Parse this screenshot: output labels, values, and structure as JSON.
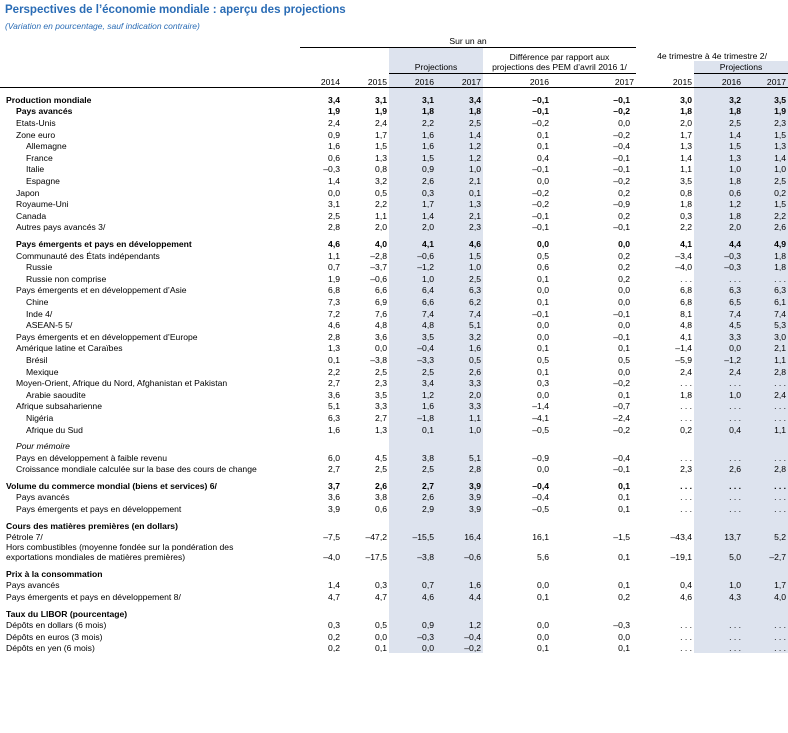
{
  "header": {
    "title": "Perspectives de l’économie mondiale : aperçu des projections",
    "subtitle": "(Variation en pourcentage, sauf indication contraire)",
    "annual": "Sur un an",
    "projections": "Projections",
    "difference": "Différence par rapport aux projections des PEM d’avril 2016 1/",
    "quarterly": "4e trimestre à 4e trimestre 2/",
    "quarterly_projections": "Projections",
    "years": [
      "2014",
      "2015",
      "2016",
      "2017",
      "2016",
      "2017",
      "2015",
      "2016",
      "2017"
    ]
  },
  "table": {
    "sections": [
      {
        "rows": [
          {
            "label": "Production mondiale",
            "level": 0,
            "style": "bold",
            "values": [
              "3,4",
              "3,1",
              "3,1",
              "3,4",
              "–0,1",
              "–0,1",
              "3,0",
              "3,2",
              "3,5"
            ]
          },
          {
            "label": "Pays avancés",
            "level": 1,
            "style": "bold",
            "values": [
              "1,9",
              "1,9",
              "1,8",
              "1,8",
              "–0,1",
              "–0,2",
              "1,8",
              "1,8",
              "1,9"
            ]
          },
          {
            "label": "Etats-Unis",
            "level": 1,
            "values": [
              "2,4",
              "2,4",
              "2,2",
              "2,5",
              "–0,2",
              "0,0",
              "2,0",
              "2,5",
              "2,3"
            ]
          },
          {
            "label": "Zone euro",
            "level": 1,
            "values": [
              "0,9",
              "1,7",
              "1,6",
              "1,4",
              "0,1",
              "–0,2",
              "1,7",
              "1,4",
              "1,5"
            ]
          },
          {
            "label": "Allemagne",
            "level": 2,
            "values": [
              "1,6",
              "1,5",
              "1,6",
              "1,2",
              "0,1",
              "–0,4",
              "1,3",
              "1,5",
              "1,3"
            ]
          },
          {
            "label": "France",
            "level": 2,
            "values": [
              "0,6",
              "1,3",
              "1,5",
              "1,2",
              "0,4",
              "–0,1",
              "1,4",
              "1,3",
              "1,4"
            ]
          },
          {
            "label": "Italie",
            "level": 2,
            "values": [
              "–0,3",
              "0,8",
              "0,9",
              "1,0",
              "–0,1",
              "–0,1",
              "1,1",
              "1,0",
              "1,0"
            ]
          },
          {
            "label": "Espagne",
            "level": 2,
            "values": [
              "1,4",
              "3,2",
              "2,6",
              "2,1",
              "0,0",
              "–0,2",
              "3,5",
              "1,8",
              "2,5"
            ]
          },
          {
            "label": "Japon",
            "level": 1,
            "values": [
              "0,0",
              "0,5",
              "0,3",
              "0,1",
              "–0,2",
              "0,2",
              "0,8",
              "0,6",
              "0,2"
            ]
          },
          {
            "label": "Royaume-Uni",
            "level": 1,
            "values": [
              "3,1",
              "2,2",
              "1,7",
              "1,3",
              "–0,2",
              "–0,9",
              "1,8",
              "1,2",
              "1,5"
            ]
          },
          {
            "label": "Canada",
            "level": 1,
            "values": [
              "2,5",
              "1,1",
              "1,4",
              "2,1",
              "–0,1",
              "0,2",
              "0,3",
              "1,8",
              "2,2"
            ]
          },
          {
            "label": "Autres pays avancés 3/",
            "level": 1,
            "values": [
              "2,8",
              "2,0",
              "2,0",
              "2,3",
              "–0,1",
              "–0,1",
              "2,2",
              "2,0",
              "2,6"
            ]
          }
        ]
      },
      {
        "rows": [
          {
            "label": "Pays émergents et pays en développement",
            "level": 1,
            "style": "bold",
            "values": [
              "4,6",
              "4,0",
              "4,1",
              "4,6",
              "0,0",
              "0,0",
              "4,1",
              "4,4",
              "4,9"
            ]
          },
          {
            "label": "Communauté des États indépendants",
            "level": 1,
            "values": [
              "1,1",
              "–2,8",
              "–0,6",
              "1,5",
              "0,5",
              "0,2",
              "–3,4",
              "–0,3",
              "1,8"
            ]
          },
          {
            "label": "Russie",
            "level": 2,
            "values": [
              "0,7",
              "–3,7",
              "–1,2",
              "1,0",
              "0,6",
              "0,2",
              "–4,0",
              "–0,3",
              "1,8"
            ]
          },
          {
            "label": "Russie non comprise",
            "level": 2,
            "values": [
              "1,9",
              "–0,6",
              "1,0",
              "2,5",
              "0,1",
              "0,2",
              ". . .",
              ". . .",
              ". . ."
            ]
          },
          {
            "label": "Pays émergents et en développement d’Asie",
            "level": 1,
            "values": [
              "6,8",
              "6,6",
              "6,4",
              "6,3",
              "0,0",
              "0,0",
              "6,8",
              "6,3",
              "6,3"
            ]
          },
          {
            "label": "Chine",
            "level": 2,
            "values": [
              "7,3",
              "6,9",
              "6,6",
              "6,2",
              "0,1",
              "0,0",
              "6,8",
              "6,5",
              "6,1"
            ]
          },
          {
            "label": "Inde 4/",
            "level": 2,
            "values": [
              "7,2",
              "7,6",
              "7,4",
              "7,4",
              "–0,1",
              "–0,1",
              "8,1",
              "7,4",
              "7,4"
            ]
          },
          {
            "label": "ASEAN-5 5/",
            "level": 2,
            "values": [
              "4,6",
              "4,8",
              "4,8",
              "5,1",
              "0,0",
              "0,0",
              "4,8",
              "4,5",
              "5,3"
            ]
          },
          {
            "label": "Pays émergents et en développement d’Europe",
            "level": 1,
            "values": [
              "2,8",
              "3,6",
              "3,5",
              "3,2",
              "0,0",
              "–0,1",
              "4,1",
              "3,3",
              "3,0"
            ]
          },
          {
            "label": "Amérique latine et Caraïbes",
            "level": 1,
            "values": [
              "1,3",
              "0,0",
              "–0,4",
              "1,6",
              "0,1",
              "0,1",
              "–1,4",
              "0,0",
              "2,1"
            ]
          },
          {
            "label": "Brésil",
            "level": 2,
            "values": [
              "0,1",
              "–3,8",
              "–3,3",
              "0,5",
              "0,5",
              "0,5",
              "–5,9",
              "–1,2",
              "1,1"
            ]
          },
          {
            "label": "Mexique",
            "level": 2,
            "values": [
              "2,2",
              "2,5",
              "2,5",
              "2,6",
              "0,1",
              "0,0",
              "2,4",
              "2,4",
              "2,8"
            ]
          },
          {
            "label": "Moyen-Orient, Afrique du Nord, Afghanistan et Pakistan",
            "level": 1,
            "values": [
              "2,7",
              "2,3",
              "3,4",
              "3,3",
              "0,3",
              "–0,2",
              ". . .",
              ". . .",
              ". . ."
            ]
          },
          {
            "label": "Arabie saoudite",
            "level": 2,
            "values": [
              "3,6",
              "3,5",
              "1,2",
              "2,0",
              "0,0",
              "0,1",
              "1,8",
              "1,0",
              "2,4"
            ]
          },
          {
            "label": "Afrique subsaharienne",
            "level": 1,
            "values": [
              "5,1",
              "3,3",
              "1,6",
              "3,3",
              "–1,4",
              "–0,7",
              ". . .",
              ". . .",
              ". . ."
            ]
          },
          {
            "label": "Nigéria",
            "level": 2,
            "values": [
              "6,3",
              "2,7",
              "–1,8",
              "1,1",
              "–4,1",
              "–2,4",
              ". . .",
              ". . .",
              ". . ."
            ]
          },
          {
            "label": "Afrique du Sud",
            "level": 2,
            "values": [
              "1,6",
              "1,3",
              "0,1",
              "1,0",
              "–0,5",
              "–0,2",
              "0,2",
              "0,4",
              "1,1"
            ]
          }
        ]
      },
      {
        "rows": [
          {
            "label": "Pour mémoire",
            "level": 1,
            "style": "italic"
          },
          {
            "label": "Pays en développement à faible revenu",
            "level": 1,
            "values": [
              "6,0",
              "4,5",
              "3,8",
              "5,1",
              "–0,9",
              "–0,4",
              ". . .",
              ". . .",
              ". . ."
            ]
          },
          {
            "label": "Croissance mondiale calculée sur la base des cours de change",
            "level": 1,
            "values": [
              "2,7",
              "2,5",
              "2,5",
              "2,8",
              "0,0",
              "–0,1",
              "2,3",
              "2,6",
              "2,8"
            ]
          }
        ]
      },
      {
        "rows": [
          {
            "label": "Volume du commerce mondial (biens et services) 6/",
            "level": 0,
            "style": "bold",
            "values": [
              "3,7",
              "2,6",
              "2,7",
              "3,9",
              "–0,4",
              "0,1",
              ". . .",
              ". . .",
              ". . ."
            ]
          },
          {
            "label": "Pays avancés",
            "level": 1,
            "values": [
              "3,6",
              "3,8",
              "2,6",
              "3,9",
              "–0,4",
              "0,1",
              ". . .",
              ". . .",
              ". . ."
            ]
          },
          {
            "label": "Pays émergents et pays en développement",
            "level": 1,
            "values": [
              "3,9",
              "0,6",
              "2,9",
              "3,9",
              "–0,5",
              "0,1",
              ". . .",
              ". . .",
              ". . ."
            ]
          }
        ]
      },
      {
        "rows": [
          {
            "label": "Cours des matières premières (en dollars)",
            "level": 0,
            "style": "bold"
          },
          {
            "label": "Pétrole 7/",
            "level": 0,
            "values": [
              "–7,5",
              "–47,2",
              "–15,5",
              "16,4",
              "16,1",
              "–1,5",
              "–43,4",
              "13,7",
              "5,2"
            ]
          },
          {
            "label": "Hors combustibles (moyenne fondée sur la pondération des exportations mondiales de matières premières)",
            "level": 0,
            "values": [
              "–4,0",
              "–17,5",
              "–3,8",
              "–0,6",
              "5,6",
              "0,1",
              "–19,1",
              "5,0",
              "–2,7"
            ]
          }
        ]
      },
      {
        "rows": [
          {
            "label": "Prix à la consommation",
            "level": 0,
            "style": "bold"
          },
          {
            "label": "Pays avancés",
            "level": 0,
            "values": [
              "1,4",
              "0,3",
              "0,7",
              "1,6",
              "0,0",
              "0,1",
              "0,4",
              "1,0",
              "1,7"
            ]
          },
          {
            "label": "Pays émergents et pays en développement 8/",
            "level": 0,
            "values": [
              "4,7",
              "4,7",
              "4,6",
              "4,4",
              "0,1",
              "0,2",
              "4,6",
              "4,3",
              "4,0"
            ]
          }
        ]
      },
      {
        "rows": [
          {
            "label": "Taux du LIBOR (pourcentage)",
            "level": 0,
            "style": "bold"
          },
          {
            "label": "Dépôts en dollars (6 mois)",
            "level": 0,
            "values": [
              "0,3",
              "0,5",
              "0,9",
              "1,2",
              "0,0",
              "–0,3",
              ". . .",
              ". . .",
              ". . ."
            ]
          },
          {
            "label": "Dépôts en euros (3 mois)",
            "level": 0,
            "values": [
              "0,2",
              "0,0",
              "–0,3",
              "–0,4",
              "0,0",
              "0,0",
              ". . .",
              ". . .",
              ". . ."
            ]
          },
          {
            "label": "Dépôts en yen (6 mois)",
            "level": 0,
            "values": [
              "0,2",
              "0,1",
              "0,0",
              "–0,2",
              "0,1",
              "0,1",
              ". . .",
              ". . .",
              ". . ."
            ]
          }
        ]
      }
    ]
  }
}
